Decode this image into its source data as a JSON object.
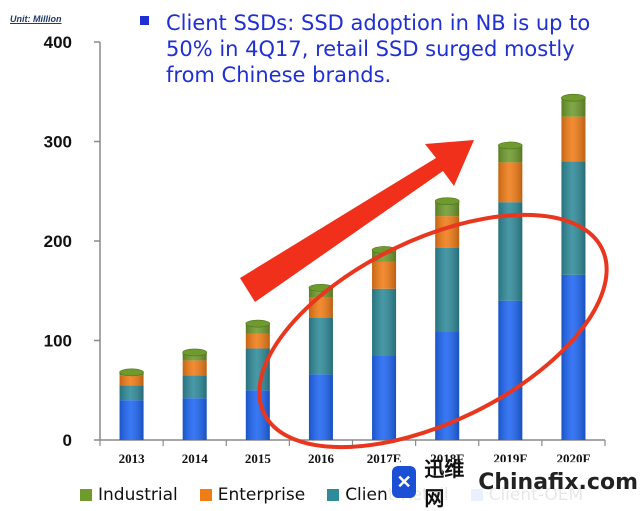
{
  "unit_label": "Unit: Million",
  "bullet_text": "Client SSDs: SSD adoption in NB is up to 50% in 4Q17, retail SSD surged mostly from Chinese brands.",
  "colors": {
    "industrial": "#6f9a2e",
    "enterprise": "#f07c17",
    "client_retail": "#2f8a99",
    "client_oem": "#1f66f2",
    "bullet": "#1f2fd6",
    "arrow": "#f0301a",
    "ellipse": "#e8361f"
  },
  "watermark": {
    "logo_glyph": "✕",
    "cn_text": "迅维网",
    "site_text": "Chinafix.com"
  },
  "chart_data": {
    "type": "bar",
    "stacked": true,
    "categories": [
      "2013",
      "2014",
      "2015",
      "2016",
      "2017E",
      "2018F",
      "2019F",
      "2020F"
    ],
    "series": [
      {
        "name": "Client-OEM",
        "values": [
          40,
          42,
          50,
          66,
          85,
          109,
          140,
          166
        ]
      },
      {
        "name": "Client-Retail",
        "values": [
          15,
          23,
          42,
          57,
          67,
          84,
          99,
          114
        ]
      },
      {
        "name": "Enterprise",
        "values": [
          10,
          15,
          15,
          20,
          27,
          32,
          40,
          45
        ]
      },
      {
        "name": "Industrial",
        "values": [
          3,
          8,
          10,
          10,
          12,
          15,
          17,
          19
        ]
      }
    ],
    "legend": [
      "Industrial",
      "Enterprise",
      "Client-Retail",
      "Client-OEM"
    ],
    "legend_placement": "bottom",
    "ylim": [
      0,
      400
    ],
    "yticks": [
      0,
      100,
      200,
      300,
      400
    ],
    "grid": false,
    "title": "",
    "xlabel": "",
    "ylabel": ""
  }
}
